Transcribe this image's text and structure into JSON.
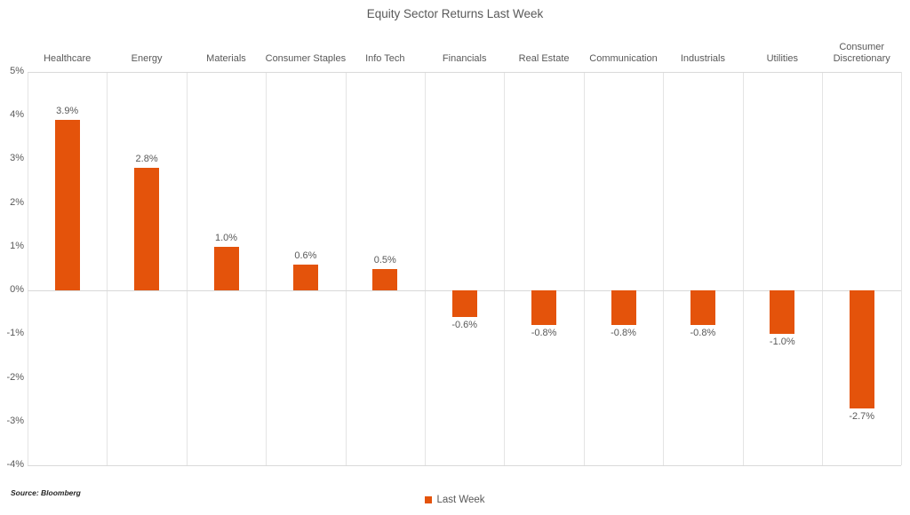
{
  "title": "Equity Sector Returns Last Week",
  "legend": {
    "label": "Last Week"
  },
  "source_note": "Source: Bloomberg",
  "colors": {
    "bar": "#E4530B",
    "column_gridline": "#E4E4E4",
    "axis_line": "#D9D9D9",
    "text": "#595959",
    "source_text": "#262626"
  },
  "chart_data": {
    "type": "bar",
    "title": "Equity Sector Returns Last Week",
    "categories": [
      "Healthcare",
      "Energy",
      "Materials",
      "Consumer Staples",
      "Info Tech",
      "Financials",
      "Real Estate",
      "Communication",
      "Industrials",
      "Utilities",
      "Consumer Discretionary"
    ],
    "series": [
      {
        "name": "Last Week",
        "values": [
          3.9,
          2.8,
          1.0,
          0.6,
          0.5,
          -0.6,
          -0.8,
          -0.8,
          -0.8,
          -1.0,
          -2.7
        ]
      }
    ],
    "data_labels": [
      "3.9%",
      "2.8%",
      "1.0%",
      "0.6%",
      "0.5%",
      "-0.6%",
      "-0.8%",
      "-0.8%",
      "-0.8%",
      "-1.0%",
      "-2.7%"
    ],
    "xlabel": "",
    "ylabel": "",
    "ylim": [
      -4,
      5
    ],
    "ytick_step": 1,
    "ytick_labels": [
      "5%",
      "4%",
      "3%",
      "2%",
      "1%",
      "0%",
      "-1%",
      "-2%",
      "-3%",
      "-4%"
    ],
    "grid": "vertical-column-separators; horizontal lines at top, zero and bottom only",
    "legend_position": "bottom-center"
  }
}
